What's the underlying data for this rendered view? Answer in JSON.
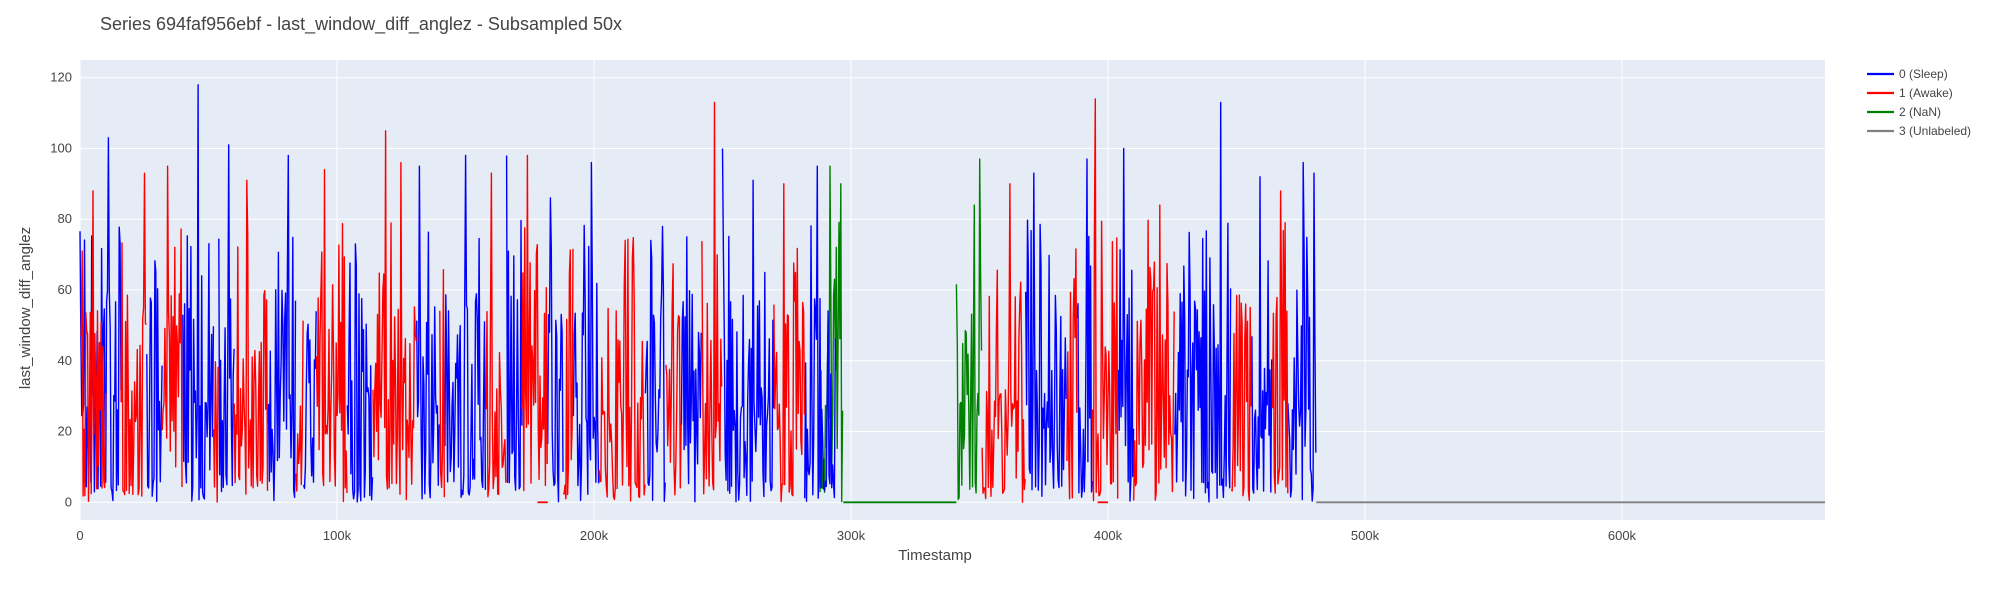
{
  "chart_data": {
    "type": "line",
    "title": "Series 694faf956ebf - last_window_diff_anglez - Subsampled 50x",
    "xlabel": "Timestamp",
    "ylabel": "last_window_diff_anglez",
    "xlim": [
      0,
      679000
    ],
    "ylim": [
      -5,
      125
    ],
    "x_ticks": [
      0,
      100000,
      200000,
      300000,
      400000,
      500000,
      600000
    ],
    "x_tick_labels": [
      "0",
      "100k",
      "200k",
      "300k",
      "400k",
      "500k",
      "600k"
    ],
    "y_ticks": [
      0,
      20,
      40,
      60,
      80,
      100,
      120
    ],
    "y_tick_labels": [
      "0",
      "20",
      "40",
      "60",
      "80",
      "100",
      "120"
    ],
    "grid": true,
    "legend_position": "top-right outside plot",
    "colors": {
      "plot_bg": "#e5ecf6",
      "grid": "#ffffff",
      "sleep": "#0000ff",
      "awake": "#ff0000",
      "nan": "#008000",
      "unlabeled": "#808080"
    },
    "series": [
      {
        "name": "0 (Sleep)",
        "color": "#0000ff",
        "segments": [
          [
            0,
            10000
          ],
          [
            10000,
            16000
          ],
          [
            26000,
            32000
          ],
          [
            40000,
            52000
          ],
          [
            54000,
            60000
          ],
          [
            73000,
            84000
          ],
          [
            87000,
            92000
          ],
          [
            104000,
            114000
          ],
          [
            131000,
            140000
          ],
          [
            142000,
            158000
          ],
          [
            166000,
            172000
          ],
          [
            182000,
            188000
          ],
          [
            192000,
            202000
          ],
          [
            220000,
            228000
          ],
          [
            234000,
            242000
          ],
          [
            250000,
            270000
          ],
          [
            282000,
            294000
          ],
          [
            368000,
            384000
          ],
          [
            388000,
            394000
          ],
          [
            404000,
            410000
          ],
          [
            426000,
            448000
          ],
          [
            456000,
            464000
          ],
          [
            470000,
            481000
          ]
        ],
        "peaks": [
          [
            11000,
            103
          ],
          [
            46000,
            118
          ],
          [
            58000,
            101
          ],
          [
            81000,
            98
          ],
          [
            103000,
            98
          ],
          [
            132000,
            95
          ],
          [
            150000,
            98
          ],
          [
            166000,
            98
          ],
          [
            183000,
            86
          ],
          [
            199000,
            96
          ],
          [
            222000,
            74
          ],
          [
            236000,
            75
          ],
          [
            250000,
            100
          ],
          [
            262000,
            91
          ],
          [
            287000,
            95
          ],
          [
            371000,
            93
          ],
          [
            392000,
            97
          ],
          [
            406000,
            100
          ],
          [
            444000,
            113
          ],
          [
            459000,
            92
          ],
          [
            476000,
            96
          ],
          [
            480000,
            93
          ]
        ]
      },
      {
        "name": "1 (Awake)",
        "color": "#ff0000",
        "segments": [
          [
            500,
            10000
          ],
          [
            16000,
            26000
          ],
          [
            32000,
            40000
          ],
          [
            52000,
            54000
          ],
          [
            60000,
            73000
          ],
          [
            84000,
            87000
          ],
          [
            92000,
            104000
          ],
          [
            114000,
            131000
          ],
          [
            140000,
            142000
          ],
          [
            158000,
            166000
          ],
          [
            172000,
            182000
          ],
          [
            188000,
            192000
          ],
          [
            202000,
            220000
          ],
          [
            228000,
            234000
          ],
          [
            242000,
            250000
          ],
          [
            270000,
            282000
          ],
          [
            351000,
            368000
          ],
          [
            384000,
            388000
          ],
          [
            394000,
            404000
          ],
          [
            410000,
            426000
          ],
          [
            448000,
            456000
          ],
          [
            464000,
            470000
          ]
        ],
        "peaks": [
          [
            5000,
            88
          ],
          [
            15000,
            89
          ],
          [
            25000,
            93
          ],
          [
            34000,
            95
          ],
          [
            50000,
            102
          ],
          [
            65000,
            91
          ],
          [
            95000,
            94
          ],
          [
            119000,
            105
          ],
          [
            125000,
            96
          ],
          [
            160000,
            93
          ],
          [
            174000,
            98
          ],
          [
            201000,
            90
          ],
          [
            212000,
            74
          ],
          [
            247000,
            113
          ],
          [
            274000,
            90
          ],
          [
            362000,
            90
          ],
          [
            380000,
            77
          ],
          [
            395000,
            114
          ],
          [
            420000,
            84
          ],
          [
            467000,
            88
          ]
        ],
        "flat_zero_runs": [
          [
            178000,
            182000
          ],
          [
            396000,
            400000
          ]
        ]
      },
      {
        "name": "2 (NaN)",
        "color": "#008000",
        "segments": [
          [
            288000,
            297000
          ],
          [
            341000,
            351000
          ]
        ],
        "peaks": [
          [
            292000,
            95
          ],
          [
            296000,
            90
          ],
          [
            348000,
            84
          ],
          [
            350000,
            97
          ]
        ],
        "flat_zero_runs": [
          [
            297000,
            341000
          ]
        ]
      },
      {
        "name": "3 (Unlabeled)",
        "color": "#808080",
        "flat_zero_runs": [
          [
            481000,
            679000
          ]
        ]
      }
    ]
  }
}
